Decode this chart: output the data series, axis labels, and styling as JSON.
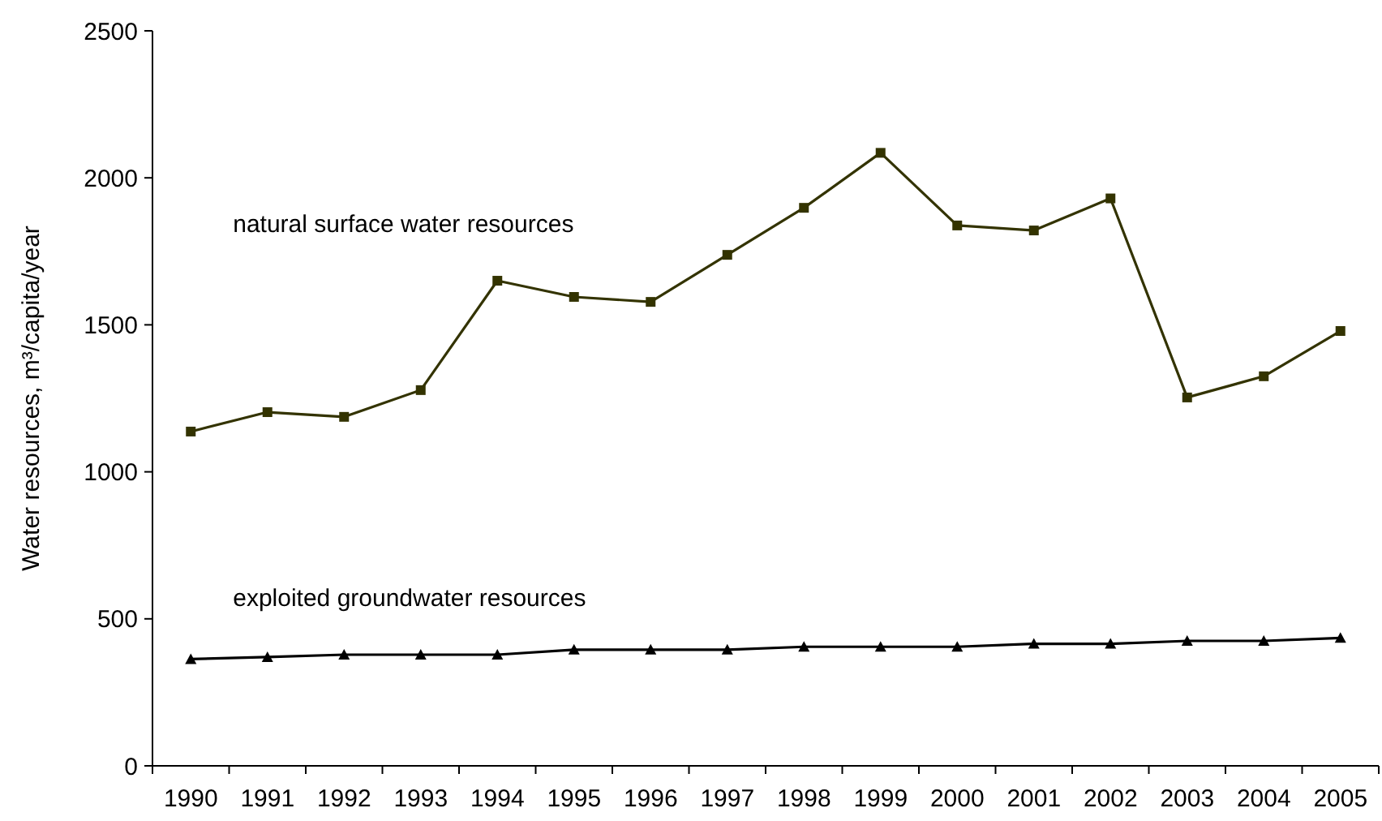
{
  "chart_data": {
    "type": "line",
    "ylabel": "Water resources, m³/capita/year",
    "categories": [
      "1990",
      "1991",
      "1992",
      "1993",
      "1994",
      "1995",
      "1996",
      "1997",
      "1998",
      "1999",
      "2000",
      "2001",
      "2002",
      "2003",
      "2004",
      "2005"
    ],
    "series": [
      {
        "name": "natural surface water resources",
        "color": "#333300",
        "marker": "square",
        "values": [
          1137,
          1203,
          1187,
          1278,
          1650,
          1595,
          1578,
          1738,
          1898,
          2085,
          1838,
          1821,
          1930,
          1253,
          1325,
          1479
        ]
      },
      {
        "name": "exploited groundwater resources",
        "color": "#000000",
        "marker": "triangle",
        "values": [
          363,
          370,
          378,
          378,
          378,
          395,
          395,
          395,
          405,
          405,
          405,
          415,
          415,
          425,
          425,
          435
        ]
      }
    ],
    "ylim": [
      0,
      2500
    ],
    "yticks": [
      0,
      500,
      1000,
      1500,
      2000,
      2500
    ],
    "grid": false,
    "line_style": "solid"
  }
}
